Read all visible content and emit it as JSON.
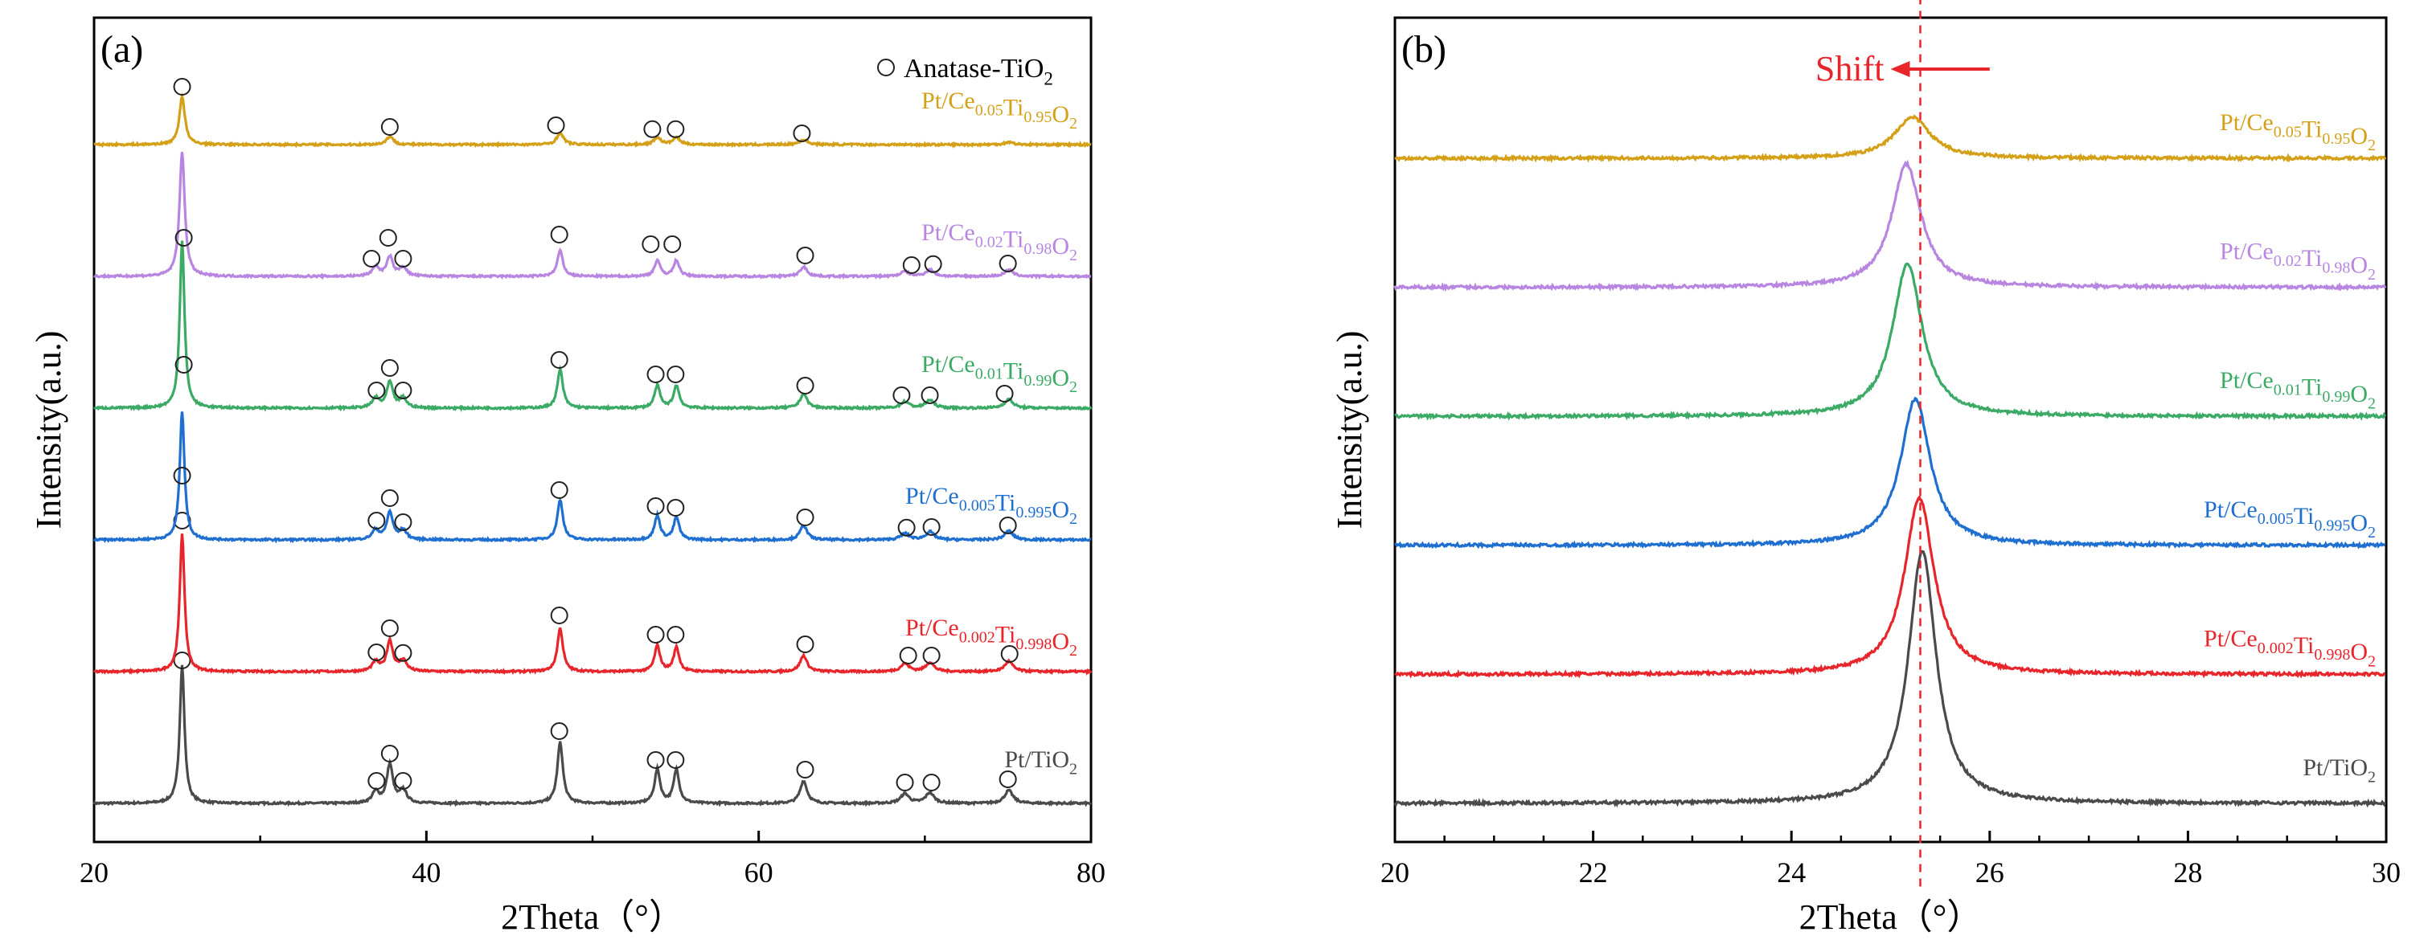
{
  "chart_data": [
    {
      "type": "line",
      "panel_label": "(a)",
      "xlabel": "2Theta（°）",
      "ylabel": "Intensity(a.u.)",
      "xlim": [
        20,
        80
      ],
      "x_ticks": [
        20,
        40,
        60,
        80
      ],
      "legend": {
        "marker": "open-circle",
        "label": "Anatase-TiO",
        "label_sub": "2",
        "placement": "top-right"
      },
      "marker_label": "Anatase-TiO2 reflection",
      "series": [
        {
          "name": "Pt/TiO2",
          "label_parts": [
            [
              "Pt/TiO",
              ""
            ],
            [
              "2",
              "sub"
            ]
          ],
          "color": "#4a4a4a",
          "offset": 0,
          "peaks": [
            [
              25.3,
              4.3,
              0.17
            ],
            [
              36.95,
              0.35,
              0.25
            ],
            [
              37.8,
              1.2,
              0.22
            ],
            [
              38.6,
              0.4,
              0.25
            ],
            [
              48.05,
              1.9,
              0.2
            ],
            [
              53.9,
              1.05,
              0.2
            ],
            [
              55.05,
              1.05,
              0.2
            ],
            [
              62.7,
              0.7,
              0.25
            ],
            [
              68.8,
              0.3,
              0.3
            ],
            [
              70.3,
              0.33,
              0.3
            ],
            [
              75.05,
              0.4,
              0.3
            ]
          ],
          "markers": [
            [
              25.3,
              4.45
            ],
            [
              37.0,
              0.7
            ],
            [
              37.8,
              1.55
            ],
            [
              38.6,
              0.7
            ],
            [
              48.0,
              2.25
            ],
            [
              53.8,
              1.35
            ],
            [
              55.0,
              1.35
            ],
            [
              62.8,
              1.05
            ],
            [
              68.8,
              0.65
            ],
            [
              70.4,
              0.65
            ],
            [
              75.0,
              0.75
            ]
          ]
        },
        {
          "name": "Pt/Ce0.002Ti0.998O2",
          "label_parts": [
            [
              "Pt/Ce",
              ""
            ],
            [
              "0.002",
              "sub"
            ],
            [
              "Ti",
              ""
            ],
            [
              "0.998",
              "sub"
            ],
            [
              "O",
              ""
            ],
            [
              "2",
              "sub"
            ]
          ],
          "color": "#e8252b",
          "offset": 4.1,
          "peaks": [
            [
              25.3,
              4.3,
              0.17
            ],
            [
              36.95,
              0.3,
              0.25
            ],
            [
              37.8,
              0.95,
              0.22
            ],
            [
              38.6,
              0.35,
              0.25
            ],
            [
              48.05,
              1.35,
              0.2
            ],
            [
              53.9,
              0.8,
              0.2
            ],
            [
              55.05,
              0.75,
              0.2
            ],
            [
              62.7,
              0.5,
              0.25
            ],
            [
              68.8,
              0.25,
              0.3
            ],
            [
              70.3,
              0.28,
              0.3
            ],
            [
              75.05,
              0.32,
              0.3
            ]
          ],
          "markers": [
            [
              25.3,
              4.7
            ],
            [
              37.0,
              0.6
            ],
            [
              37.8,
              1.35
            ],
            [
              38.6,
              0.58
            ],
            [
              48.0,
              1.75
            ],
            [
              53.8,
              1.15
            ],
            [
              55.0,
              1.15
            ],
            [
              62.8,
              0.85
            ],
            [
              69.0,
              0.5
            ],
            [
              70.4,
              0.5
            ],
            [
              75.1,
              0.55
            ]
          ]
        },
        {
          "name": "Pt/Ce0.005Ti0.995O2",
          "label_parts": [
            [
              "Pt/Ce",
              ""
            ],
            [
              "0.005",
              "sub"
            ],
            [
              "Ti",
              ""
            ],
            [
              "0.995",
              "sub"
            ],
            [
              "O",
              ""
            ],
            [
              "2",
              "sub"
            ]
          ],
          "color": "#1f6fd1",
          "offset": 8.2,
          "peaks": [
            [
              25.3,
              4.0,
              0.17
            ],
            [
              36.95,
              0.3,
              0.25
            ],
            [
              37.8,
              0.85,
              0.22
            ],
            [
              38.6,
              0.3,
              0.25
            ],
            [
              48.05,
              1.25,
              0.2
            ],
            [
              53.9,
              0.75,
              0.2
            ],
            [
              55.05,
              0.7,
              0.2
            ],
            [
              62.7,
              0.45,
              0.25
            ],
            [
              68.8,
              0.2,
              0.3
            ],
            [
              70.3,
              0.25,
              0.3
            ],
            [
              75.05,
              0.28,
              0.3
            ]
          ],
          "markers": [
            [
              25.3,
              2.0
            ],
            [
              37.0,
              0.6
            ],
            [
              37.8,
              1.3
            ],
            [
              38.6,
              0.55
            ],
            [
              48.0,
              1.55
            ],
            [
              53.8,
              1.05
            ],
            [
              55.0,
              1.0
            ],
            [
              62.8,
              0.7
            ],
            [
              68.9,
              0.38
            ],
            [
              70.4,
              0.4
            ],
            [
              75.0,
              0.45
            ]
          ]
        },
        {
          "name": "Pt/Ce0.01Ti0.99O2",
          "label_parts": [
            [
              "Pt/Ce",
              ""
            ],
            [
              "0.01",
              "sub"
            ],
            [
              "Ti",
              ""
            ],
            [
              "0.99",
              "sub"
            ],
            [
              "O",
              ""
            ],
            [
              "2",
              "sub"
            ]
          ],
          "color": "#3aaa65",
          "offset": 12.3,
          "peaks": [
            [
              25.3,
              5.2,
              0.17
            ],
            [
              36.95,
              0.3,
              0.25
            ],
            [
              37.8,
              0.8,
              0.22
            ],
            [
              38.6,
              0.3,
              0.25
            ],
            [
              48.05,
              1.2,
              0.2
            ],
            [
              53.9,
              0.7,
              0.2
            ],
            [
              55.05,
              0.7,
              0.2
            ],
            [
              62.7,
              0.45,
              0.25
            ],
            [
              68.8,
              0.2,
              0.3
            ],
            [
              70.3,
              0.25,
              0.3
            ],
            [
              75.05,
              0.28,
              0.3
            ]
          ],
          "markers": [
            [
              25.4,
              1.35
            ],
            [
              37.0,
              0.55
            ],
            [
              37.8,
              1.25
            ],
            [
              38.6,
              0.55
            ],
            [
              48.0,
              1.5
            ],
            [
              53.8,
              1.05
            ],
            [
              55.0,
              1.05
            ],
            [
              62.8,
              0.7
            ],
            [
              68.6,
              0.4
            ],
            [
              70.3,
              0.4
            ],
            [
              74.8,
              0.45
            ]
          ]
        },
        {
          "name": "Pt/Ce0.02Ti0.98O2",
          "label_parts": [
            [
              "Pt/Ce",
              ""
            ],
            [
              "0.02",
              "sub"
            ],
            [
              "Ti",
              ""
            ],
            [
              "0.98",
              "sub"
            ],
            [
              "O",
              ""
            ],
            [
              "2",
              "sub"
            ]
          ],
          "color": "#b886e0",
          "offset": 16.4,
          "peaks": [
            [
              25.3,
              3.85,
              0.19
            ],
            [
              36.95,
              0.3,
              0.25
            ],
            [
              37.8,
              0.6,
              0.22
            ],
            [
              38.6,
              0.28,
              0.25
            ],
            [
              48.05,
              0.8,
              0.2
            ],
            [
              53.9,
              0.5,
              0.2
            ],
            [
              55.05,
              0.5,
              0.2
            ],
            [
              62.7,
              0.3,
              0.25
            ],
            [
              68.8,
              0.15,
              0.3
            ],
            [
              70.3,
              0.2,
              0.3
            ],
            [
              75.05,
              0.2,
              0.3
            ]
          ],
          "markers": [
            [
              25.4,
              1.2
            ],
            [
              36.7,
              0.55
            ],
            [
              37.7,
              1.2
            ],
            [
              38.6,
              0.55
            ],
            [
              48.0,
              1.3
            ],
            [
              53.5,
              1.0
            ],
            [
              54.8,
              1.0
            ],
            [
              62.8,
              0.65
            ],
            [
              69.2,
              0.35
            ],
            [
              70.5,
              0.38
            ],
            [
              75.0,
              0.4
            ]
          ]
        },
        {
          "name": "Pt/Ce0.05Ti0.95O2",
          "label_parts": [
            [
              "Pt/Ce",
              ""
            ],
            [
              "0.05",
              "sub"
            ],
            [
              "Ti",
              ""
            ],
            [
              "0.95",
              "sub"
            ],
            [
              "O",
              ""
            ],
            [
              "2",
              "sub"
            ]
          ],
          "color": "#d4a017",
          "offset": 20.5,
          "peaks": [
            [
              25.3,
              1.5,
              0.2
            ],
            [
              37.8,
              0.25,
              0.25
            ],
            [
              48.05,
              0.35,
              0.25
            ],
            [
              53.9,
              0.22,
              0.25
            ],
            [
              55.05,
              0.22,
              0.25
            ],
            [
              62.7,
              0.15,
              0.3
            ],
            [
              75.05,
              0.08,
              0.3
            ]
          ],
          "markers": [
            [
              25.3,
              1.8
            ],
            [
              37.8,
              0.55
            ],
            [
              47.8,
              0.6
            ],
            [
              53.6,
              0.48
            ],
            [
              55.0,
              0.48
            ],
            [
              62.6,
              0.35
            ]
          ]
        }
      ]
    },
    {
      "type": "line",
      "panel_label": "(b)",
      "xlabel": "2Theta（°）",
      "ylabel": "Intensity(a.u.)",
      "xlim": [
        20,
        30
      ],
      "x_ticks": [
        20,
        22,
        24,
        26,
        28,
        30
      ],
      "annotation": {
        "text": "Shift",
        "arrow_from": 26.0,
        "arrow_to": 25.0,
        "color": "#e8252b"
      },
      "reference_line": {
        "x": 25.3,
        "color": "#e8252b",
        "style": "dashed"
      },
      "series": [
        {
          "name": "Pt/TiO2",
          "label_parts": [
            [
              "Pt/TiO",
              ""
            ],
            [
              "2",
              "sub"
            ]
          ],
          "color": "#4a4a4a",
          "offset": 0,
          "peak": [
            25.32,
            4.3,
            0.17
          ]
        },
        {
          "name": "Pt/Ce0.002Ti0.998O2",
          "label_parts": [
            [
              "Pt/Ce",
              ""
            ],
            [
              "0.002",
              "sub"
            ],
            [
              "Ti",
              ""
            ],
            [
              "0.998",
              "sub"
            ],
            [
              "O",
              ""
            ],
            [
              "2",
              "sub"
            ]
          ],
          "color": "#e8252b",
          "offset": 2.2,
          "peak": [
            25.29,
            3.0,
            0.18
          ]
        },
        {
          "name": "Pt/Ce0.005Ti0.995O2",
          "label_parts": [
            [
              "Pt/Ce",
              ""
            ],
            [
              "0.005",
              "sub"
            ],
            [
              "Ti",
              ""
            ],
            [
              "0.995",
              "sub"
            ],
            [
              "O",
              ""
            ],
            [
              "2",
              "sub"
            ]
          ],
          "color": "#1f6fd1",
          "offset": 4.4,
          "peak": [
            25.25,
            2.5,
            0.18
          ]
        },
        {
          "name": "Pt/Ce0.01Ti0.99O2",
          "label_parts": [
            [
              "Pt/Ce",
              ""
            ],
            [
              "0.01",
              "sub"
            ],
            [
              "Ti",
              ""
            ],
            [
              "0.99",
              "sub"
            ],
            [
              "O",
              ""
            ],
            [
              "2",
              "sub"
            ]
          ],
          "color": "#3aaa65",
          "offset": 6.6,
          "peak": [
            25.17,
            2.6,
            0.18
          ]
        },
        {
          "name": "Pt/Ce0.02Ti0.98O2",
          "label_parts": [
            [
              "Pt/Ce",
              ""
            ],
            [
              "0.02",
              "sub"
            ],
            [
              "Ti",
              ""
            ],
            [
              "0.98",
              "sub"
            ],
            [
              "O",
              ""
            ],
            [
              "2",
              "sub"
            ]
          ],
          "color": "#b886e0",
          "offset": 8.8,
          "peak": [
            25.16,
            2.1,
            0.18
          ]
        },
        {
          "name": "Pt/Ce0.05Ti0.95O2",
          "label_parts": [
            [
              "Pt/Ce",
              ""
            ],
            [
              "0.05",
              "sub"
            ],
            [
              "Ti",
              ""
            ],
            [
              "0.95",
              "sub"
            ],
            [
              "O",
              ""
            ],
            [
              "2",
              "sub"
            ]
          ],
          "color": "#d4a017",
          "offset": 11.0,
          "peak": [
            25.22,
            0.7,
            0.22
          ]
        }
      ]
    }
  ]
}
